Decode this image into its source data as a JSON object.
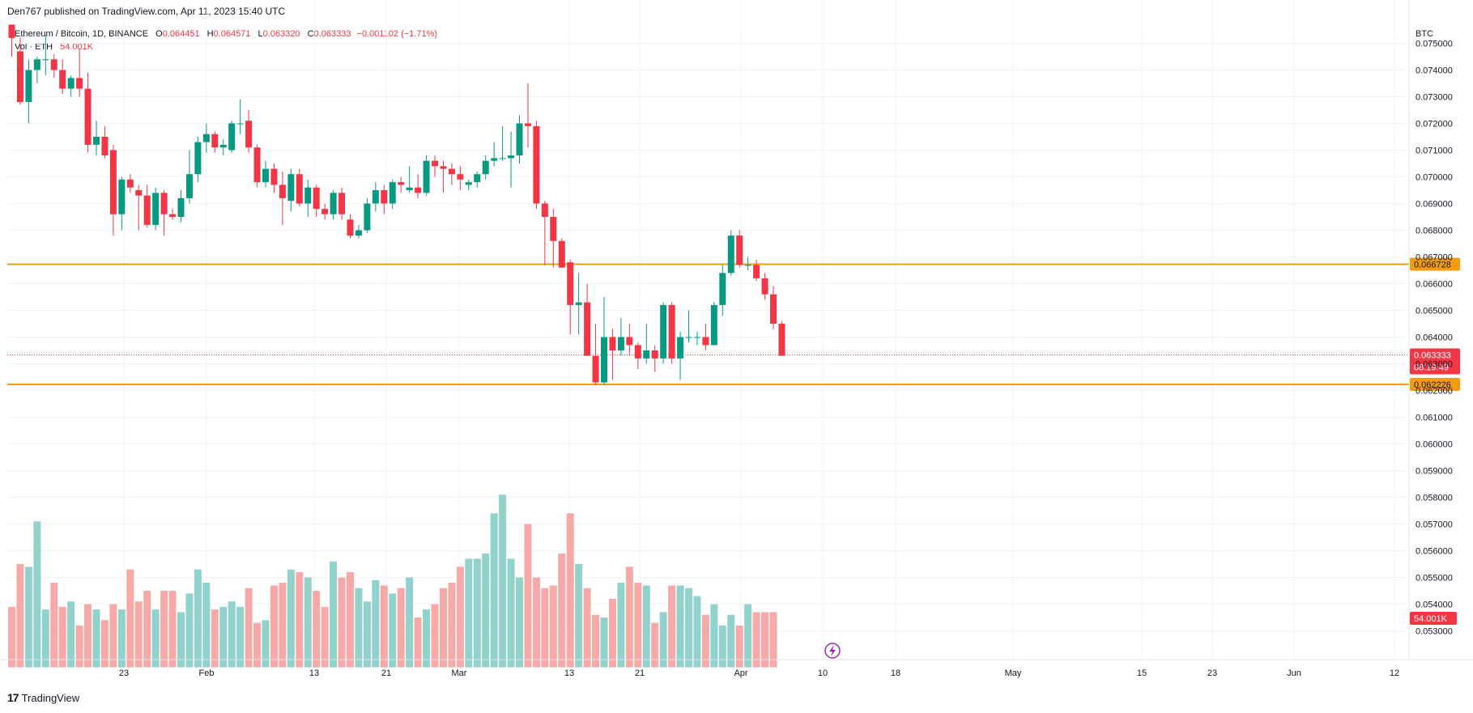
{
  "header": {
    "published": "Den767 published on TradingView.com, Apr 11, 2023 15:40 UTC"
  },
  "legend": {
    "symbol": "Ethereum / Bitcoin, 1D, BINANCE",
    "o_label": "O",
    "o_value": "0.064451",
    "h_label": "H",
    "h_value": "0.064571",
    "l_label": "L",
    "l_value": "0.063320",
    "c_label": "C",
    "c_value": "0.063333",
    "change": "−0.001102 (−1.71%)",
    "vol_label": "Vol · ETH",
    "vol_value": "54.001K"
  },
  "footer": {
    "brand": "TradingView"
  },
  "colors": {
    "up": "#089981",
    "down": "#f23645",
    "up_vol": "#92d2cc",
    "down_vol": "#f7a9a7",
    "level": "#f39c12"
  },
  "chart_data": {
    "type": "candlestick",
    "title": "Ethereum / Bitcoin, 1D, BINANCE",
    "price_axis_unit": "BTC",
    "price_ticks": [
      "0.075000",
      "0.074000",
      "0.073000",
      "0.072000",
      "0.071000",
      "0.070000",
      "0.069000",
      "0.068000",
      "0.067000",
      "0.066000",
      "0.065000",
      "0.064000",
      "0.063000",
      "0.062000",
      "0.061000",
      "0.060000",
      "0.059000",
      "0.058000",
      "0.057000",
      "0.056000",
      "0.055000",
      "0.054000",
      "0.053000"
    ],
    "x_ticks": [
      "23",
      "Feb",
      "13",
      "21",
      "Mar",
      "13",
      "21",
      "Apr",
      "10",
      "18",
      "May",
      "15",
      "23",
      "Jun",
      "12"
    ],
    "ylim": [
      0.0523,
      0.0757
    ],
    "levels": [
      {
        "value": 0.066728,
        "label": "0.066728"
      },
      {
        "value": 0.062226,
        "label": "0.062226"
      }
    ],
    "last_price": {
      "value": 0.063333,
      "label": "0.063333",
      "countdown": "08:19:49"
    },
    "last_volume_label": "54.001K",
    "candles": [
      {
        "o": 0.0758,
        "h": 0.076,
        "l": 0.0745,
        "c": 0.0752
      },
      {
        "o": 0.0747,
        "h": 0.0752,
        "l": 0.0727,
        "c": 0.0728
      },
      {
        "o": 0.0728,
        "h": 0.0744,
        "l": 0.072,
        "c": 0.074
      },
      {
        "o": 0.074,
        "h": 0.0745,
        "l": 0.0735,
        "c": 0.0744
      },
      {
        "o": 0.0744,
        "h": 0.0753,
        "l": 0.0738,
        "c": 0.0744
      },
      {
        "o": 0.0744,
        "h": 0.0746,
        "l": 0.0737,
        "c": 0.074
      },
      {
        "o": 0.074,
        "h": 0.0744,
        "l": 0.0731,
        "c": 0.0733
      },
      {
        "o": 0.0733,
        "h": 0.0738,
        "l": 0.073,
        "c": 0.0737
      },
      {
        "o": 0.0737,
        "h": 0.0748,
        "l": 0.073,
        "c": 0.0733
      },
      {
        "o": 0.0733,
        "h": 0.0739,
        "l": 0.0709,
        "c": 0.0712
      },
      {
        "o": 0.0712,
        "h": 0.0721,
        "l": 0.0708,
        "c": 0.0715
      },
      {
        "o": 0.0715,
        "h": 0.0719,
        "l": 0.0707,
        "c": 0.0708
      },
      {
        "o": 0.071,
        "h": 0.0712,
        "l": 0.0678,
        "c": 0.0686
      },
      {
        "o": 0.0686,
        "h": 0.07,
        "l": 0.068,
        "c": 0.0699
      },
      {
        "o": 0.0699,
        "h": 0.0701,
        "l": 0.0694,
        "c": 0.0696
      },
      {
        "o": 0.0695,
        "h": 0.0697,
        "l": 0.068,
        "c": 0.0693
      },
      {
        "o": 0.0693,
        "h": 0.0697,
        "l": 0.0681,
        "c": 0.0682
      },
      {
        "o": 0.0682,
        "h": 0.0696,
        "l": 0.068,
        "c": 0.0694
      },
      {
        "o": 0.0694,
        "h": 0.0695,
        "l": 0.0678,
        "c": 0.0686
      },
      {
        "o": 0.0686,
        "h": 0.0688,
        "l": 0.0684,
        "c": 0.0685
      },
      {
        "o": 0.0685,
        "h": 0.0695,
        "l": 0.0683,
        "c": 0.0692
      },
      {
        "o": 0.0692,
        "h": 0.071,
        "l": 0.069,
        "c": 0.0701
      },
      {
        "o": 0.0701,
        "h": 0.0715,
        "l": 0.0698,
        "c": 0.0713
      },
      {
        "o": 0.0713,
        "h": 0.072,
        "l": 0.0709,
        "c": 0.0716
      },
      {
        "o": 0.0716,
        "h": 0.0717,
        "l": 0.0709,
        "c": 0.0711
      },
      {
        "o": 0.0711,
        "h": 0.0714,
        "l": 0.0708,
        "c": 0.0712
      },
      {
        "o": 0.071,
        "h": 0.0721,
        "l": 0.0709,
        "c": 0.072
      },
      {
        "o": 0.072,
        "h": 0.0729,
        "l": 0.0716,
        "c": 0.072
      },
      {
        "o": 0.0721,
        "h": 0.0725,
        "l": 0.0709,
        "c": 0.0711
      },
      {
        "o": 0.0711,
        "h": 0.0712,
        "l": 0.0696,
        "c": 0.0698
      },
      {
        "o": 0.0698,
        "h": 0.0706,
        "l": 0.0696,
        "c": 0.0703
      },
      {
        "o": 0.0703,
        "h": 0.0705,
        "l": 0.0694,
        "c": 0.0697
      },
      {
        "o": 0.0697,
        "h": 0.0702,
        "l": 0.0682,
        "c": 0.0692
      },
      {
        "o": 0.0691,
        "h": 0.0703,
        "l": 0.0687,
        "c": 0.0701
      },
      {
        "o": 0.0701,
        "h": 0.0703,
        "l": 0.0689,
        "c": 0.069
      },
      {
        "o": 0.069,
        "h": 0.0699,
        "l": 0.0685,
        "c": 0.0696
      },
      {
        "o": 0.0696,
        "h": 0.0697,
        "l": 0.0685,
        "c": 0.0688
      },
      {
        "o": 0.0688,
        "h": 0.069,
        "l": 0.0684,
        "c": 0.0686
      },
      {
        "o": 0.0686,
        "h": 0.0695,
        "l": 0.0684,
        "c": 0.0694
      },
      {
        "o": 0.0694,
        "h": 0.0696,
        "l": 0.0684,
        "c": 0.0686
      },
      {
        "o": 0.0684,
        "h": 0.0686,
        "l": 0.0677,
        "c": 0.0678
      },
      {
        "o": 0.0678,
        "h": 0.0682,
        "l": 0.0677,
        "c": 0.068
      },
      {
        "o": 0.068,
        "h": 0.0692,
        "l": 0.0679,
        "c": 0.069
      },
      {
        "o": 0.069,
        "h": 0.0698,
        "l": 0.0687,
        "c": 0.0695
      },
      {
        "o": 0.0695,
        "h": 0.0697,
        "l": 0.0686,
        "c": 0.069
      },
      {
        "o": 0.069,
        "h": 0.0699,
        "l": 0.0688,
        "c": 0.0698
      },
      {
        "o": 0.0698,
        "h": 0.07,
        "l": 0.0694,
        "c": 0.0697
      },
      {
        "o": 0.0695,
        "h": 0.0704,
        "l": 0.0694,
        "c": 0.0696
      },
      {
        "o": 0.0696,
        "h": 0.0701,
        "l": 0.0692,
        "c": 0.0694
      },
      {
        "o": 0.0694,
        "h": 0.0708,
        "l": 0.0693,
        "c": 0.0706
      },
      {
        "o": 0.0706,
        "h": 0.0708,
        "l": 0.07,
        "c": 0.0704
      },
      {
        "o": 0.0704,
        "h": 0.0706,
        "l": 0.0694,
        "c": 0.0703
      },
      {
        "o": 0.0703,
        "h": 0.0705,
        "l": 0.0697,
        "c": 0.0701
      },
      {
        "o": 0.0701,
        "h": 0.0704,
        "l": 0.0695,
        "c": 0.0699
      },
      {
        "o": 0.0697,
        "h": 0.0699,
        "l": 0.0695,
        "c": 0.0698
      },
      {
        "o": 0.0698,
        "h": 0.0702,
        "l": 0.0696,
        "c": 0.0701
      },
      {
        "o": 0.0701,
        "h": 0.0708,
        "l": 0.0699,
        "c": 0.0706
      },
      {
        "o": 0.0706,
        "h": 0.0713,
        "l": 0.0704,
        "c": 0.0707
      },
      {
        "o": 0.0707,
        "h": 0.0719,
        "l": 0.0706,
        "c": 0.0707
      },
      {
        "o": 0.0707,
        "h": 0.0717,
        "l": 0.0696,
        "c": 0.0708
      },
      {
        "o": 0.0708,
        "h": 0.0723,
        "l": 0.0705,
        "c": 0.072
      },
      {
        "o": 0.072,
        "h": 0.0735,
        "l": 0.0711,
        "c": 0.0719
      },
      {
        "o": 0.0719,
        "h": 0.0721,
        "l": 0.0688,
        "c": 0.069
      },
      {
        "o": 0.069,
        "h": 0.0691,
        "l": 0.0667,
        "c": 0.0685
      },
      {
        "o": 0.0685,
        "h": 0.0688,
        "l": 0.0666,
        "c": 0.0676
      },
      {
        "o": 0.0676,
        "h": 0.0677,
        "l": 0.0666,
        "c": 0.0666
      },
      {
        "o": 0.0668,
        "h": 0.0669,
        "l": 0.0641,
        "c": 0.0652
      },
      {
        "o": 0.0652,
        "h": 0.0664,
        "l": 0.0641,
        "c": 0.0653
      },
      {
        "o": 0.0653,
        "h": 0.066,
        "l": 0.0633,
        "c": 0.0633
      },
      {
        "o": 0.0633,
        "h": 0.0645,
        "l": 0.0622,
        "c": 0.0623
      },
      {
        "o": 0.0623,
        "h": 0.0655,
        "l": 0.0622,
        "c": 0.064
      },
      {
        "o": 0.064,
        "h": 0.0643,
        "l": 0.0624,
        "c": 0.0635
      },
      {
        "o": 0.0635,
        "h": 0.0647,
        "l": 0.0633,
        "c": 0.064
      },
      {
        "o": 0.064,
        "h": 0.0645,
        "l": 0.0633,
        "c": 0.0637
      },
      {
        "o": 0.0637,
        "h": 0.0638,
        "l": 0.0628,
        "c": 0.0632
      },
      {
        "o": 0.0632,
        "h": 0.0645,
        "l": 0.063,
        "c": 0.0635
      },
      {
        "o": 0.0635,
        "h": 0.0637,
        "l": 0.0627,
        "c": 0.0632
      },
      {
        "o": 0.0632,
        "h": 0.0653,
        "l": 0.063,
        "c": 0.0652
      },
      {
        "o": 0.0652,
        "h": 0.0653,
        "l": 0.063,
        "c": 0.0632
      },
      {
        "o": 0.0632,
        "h": 0.0642,
        "l": 0.0624,
        "c": 0.064
      },
      {
        "o": 0.064,
        "h": 0.065,
        "l": 0.0638,
        "c": 0.064
      },
      {
        "o": 0.064,
        "h": 0.0642,
        "l": 0.0637,
        "c": 0.064
      },
      {
        "o": 0.064,
        "h": 0.0645,
        "l": 0.0635,
        "c": 0.0637
      },
      {
        "o": 0.0637,
        "h": 0.0653,
        "l": 0.0637,
        "c": 0.0652
      },
      {
        "o": 0.0652,
        "h": 0.0667,
        "l": 0.0648,
        "c": 0.0664
      },
      {
        "o": 0.0664,
        "h": 0.068,
        "l": 0.0663,
        "c": 0.0678
      },
      {
        "o": 0.0678,
        "h": 0.068,
        "l": 0.0666,
        "c": 0.0667
      },
      {
        "o": 0.0667,
        "h": 0.067,
        "l": 0.0665,
        "c": 0.0667
      },
      {
        "o": 0.0667,
        "h": 0.0669,
        "l": 0.0661,
        "c": 0.0662
      },
      {
        "o": 0.0662,
        "h": 0.0664,
        "l": 0.0654,
        "c": 0.0656
      },
      {
        "o": 0.0656,
        "h": 0.0659,
        "l": 0.0643,
        "c": 0.0645
      },
      {
        "o": 0.0645,
        "h": 0.0646,
        "l": 0.0633,
        "c": 0.0633
      }
    ],
    "volume_scale_max": 0.0585,
    "volume_scale_min": 0.0523,
    "volumes_as_price_level": [
      0.0539,
      0.0555,
      0.0554,
      0.0571,
      0.0538,
      0.0548,
      0.0539,
      0.0541,
      0.0532,
      0.054,
      0.0538,
      0.0534,
      0.054,
      0.0538,
      0.0553,
      0.0541,
      0.0545,
      0.0538,
      0.0545,
      0.0545,
      0.0537,
      0.0544,
      0.0553,
      0.0548,
      0.0538,
      0.0539,
      0.0541,
      0.0539,
      0.0546,
      0.0533,
      0.0534,
      0.0547,
      0.0548,
      0.0553,
      0.0552,
      0.055,
      0.0545,
      0.0539,
      0.0556,
      0.055,
      0.0552,
      0.0546,
      0.0541,
      0.0549,
      0.0547,
      0.0544,
      0.0546,
      0.055,
      0.0535,
      0.0538,
      0.054,
      0.0546,
      0.0548,
      0.0554,
      0.0557,
      0.0557,
      0.0559,
      0.0574,
      0.0581,
      0.0557,
      0.055,
      0.057,
      0.055,
      0.0546,
      0.0547,
      0.0559,
      0.0574,
      0.0555,
      0.0546,
      0.0536,
      0.0535,
      0.0542,
      0.0548,
      0.0554,
      0.0548,
      0.0547,
      0.0533,
      0.0537,
      0.0547,
      0.0547,
      0.0546,
      0.0543,
      0.0536,
      0.054,
      0.0532,
      0.0536,
      0.0532,
      0.054,
      0.0537,
      0.0537,
      0.0537
    ]
  }
}
